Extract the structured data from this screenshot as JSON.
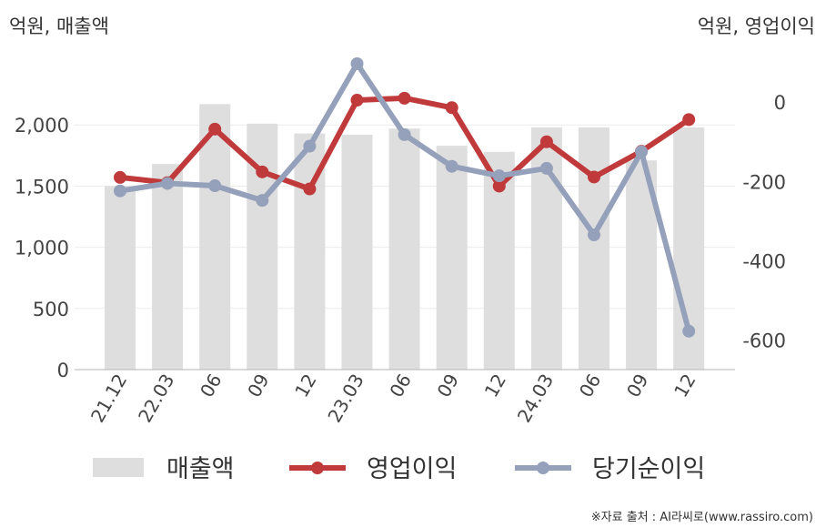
{
  "chart_data": {
    "type": "bar+line",
    "left_axis_unit": "억원, 매출액",
    "right_axis_unit": "억원, 영업이익",
    "categories": [
      "21.12",
      "22.03",
      "06",
      "09",
      "12",
      "23.03",
      "06",
      "09",
      "12",
      "24.03",
      "06",
      "09",
      "12"
    ],
    "left_ticks": [
      "0",
      "500",
      "1,000",
      "1,500",
      "2,000"
    ],
    "right_ticks": [
      "0",
      "-200",
      "-400",
      "-600"
    ],
    "left_ylim": [
      0,
      2500
    ],
    "right_ylim": [
      -675,
      97
    ],
    "series": [
      {
        "name": "매출액",
        "kind": "bar",
        "axis": "left",
        "color": "#dedede",
        "values": [
          1500,
          1680,
          2170,
          2010,
          1930,
          1920,
          1970,
          1830,
          1780,
          1980,
          1980,
          1710,
          1980
        ]
      },
      {
        "name": "영업이익",
        "kind": "line",
        "axis": "right",
        "color": "#c0393b",
        "values": [
          -190,
          -203,
          -68,
          -176,
          -219,
          5,
          10,
          -14,
          -212,
          -100,
          -189,
          -124,
          -44
        ]
      },
      {
        "name": "당기순이익",
        "kind": "line",
        "axis": "right",
        "color": "#95a0ba",
        "values": [
          -224,
          -205,
          -211,
          -248,
          -111,
          97,
          -82,
          -162,
          -186,
          -167,
          -335,
          -125,
          -578
        ]
      }
    ],
    "grid": "horizontal",
    "legend_position": "bottom"
  },
  "source": "※자료 출처 : AI라씨로(www.rassiro.com)"
}
